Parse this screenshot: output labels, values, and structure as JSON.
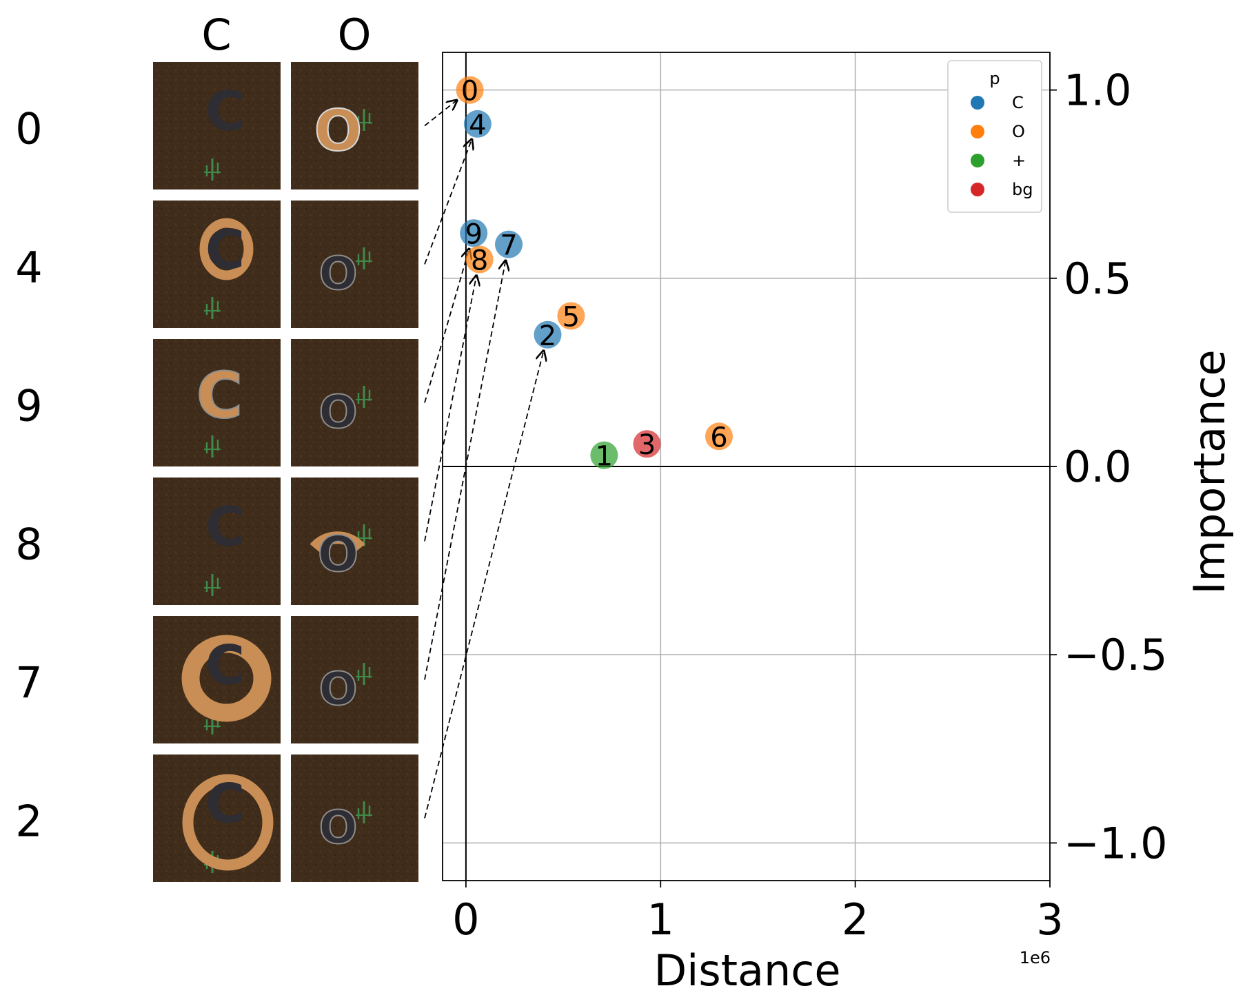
{
  "chart_data": {
    "type": "scatter",
    "xlabel": "Distance",
    "ylabel": "Importance",
    "x_offset_label": "1e6",
    "xlim": [
      -0.12,
      3.0
    ],
    "ylim": [
      -1.1,
      1.1
    ],
    "xticks": [
      0,
      1,
      2,
      3
    ],
    "xtick_labels": [
      "0",
      "1",
      "2",
      "3"
    ],
    "yticks": [
      1.0,
      0.5,
      0.0,
      -0.5,
      -1.0
    ],
    "ytick_labels": [
      "1.0",
      "0.5",
      "0.0",
      "−0.5",
      "−1.0"
    ],
    "y_axis_side": "right",
    "grid": true,
    "legend": {
      "title": "p",
      "placement": "top-right",
      "entries": [
        {
          "label": "C",
          "color": "#1f77b4"
        },
        {
          "label": "O",
          "color": "#ff7f0e"
        },
        {
          "label": "+",
          "color": "#2ca02c"
        },
        {
          "label": "bg",
          "color": "#d62728"
        }
      ]
    },
    "points": [
      {
        "label": "0",
        "x": 0.02,
        "y": 1.0,
        "group": "O"
      },
      {
        "label": "4",
        "x": 0.06,
        "y": 0.91,
        "group": "C"
      },
      {
        "label": "9",
        "x": 0.04,
        "y": 0.62,
        "group": "C"
      },
      {
        "label": "7",
        "x": 0.22,
        "y": 0.59,
        "group": "C"
      },
      {
        "label": "8",
        "x": 0.07,
        "y": 0.55,
        "group": "O"
      },
      {
        "label": "5",
        "x": 0.54,
        "y": 0.4,
        "group": "O"
      },
      {
        "label": "2",
        "x": 0.42,
        "y": 0.35,
        "group": "C"
      },
      {
        "label": "1",
        "x": 0.71,
        "y": 0.03,
        "group": "+"
      },
      {
        "label": "3",
        "x": 0.93,
        "y": 0.06,
        "group": "bg"
      },
      {
        "label": "6",
        "x": 1.3,
        "y": 0.08,
        "group": "O"
      }
    ]
  },
  "image_grid": {
    "column_headers": [
      "C",
      "O"
    ],
    "row_labels": [
      "0",
      "4",
      "9",
      "8",
      "7",
      "2"
    ],
    "rows": [
      {
        "label": "0",
        "cells": [
          {
            "letter": "C",
            "highlight": "none"
          },
          {
            "letter": "O",
            "highlight": "letter"
          }
        ]
      },
      {
        "label": "4",
        "cells": [
          {
            "letter": "C",
            "highlight": "ring-small"
          },
          {
            "letter": "O",
            "highlight": "none"
          }
        ]
      },
      {
        "label": "9",
        "cells": [
          {
            "letter": "C",
            "highlight": "letter"
          },
          {
            "letter": "O",
            "highlight": "none"
          }
        ]
      },
      {
        "label": "8",
        "cells": [
          {
            "letter": "C",
            "highlight": "none"
          },
          {
            "letter": "O",
            "highlight": "arc-top"
          }
        ]
      },
      {
        "label": "7",
        "cells": [
          {
            "letter": "C",
            "highlight": "ring-medium"
          },
          {
            "letter": "O",
            "highlight": "none"
          }
        ]
      },
      {
        "label": "2",
        "cells": [
          {
            "letter": "C",
            "highlight": "ring-large"
          },
          {
            "letter": "O",
            "highlight": "none"
          }
        ]
      }
    ]
  },
  "colors": {
    "soil": "#3f2c1a",
    "highlight": "#c98e55",
    "letter": "#2d2d33",
    "cactus": "#3f8a4a"
  }
}
